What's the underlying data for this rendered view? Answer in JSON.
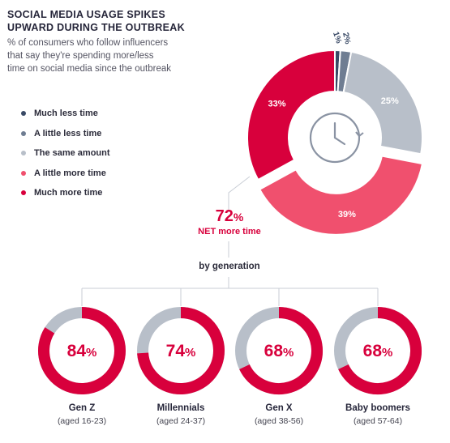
{
  "title_line1": "SOCIAL MEDIA USAGE SPIKES",
  "title_line2": "UPWARD DURING THE OUTBREAK",
  "subtitle_line1": "% of consumers who follow influencers",
  "subtitle_line2": "that say they're spending more/less",
  "subtitle_line3": "time on social media since the outbreak",
  "net": {
    "value": "72",
    "unit": "%",
    "label": "NET more time"
  },
  "by_generation_label": "by generation",
  "colors": {
    "much_less": "#3a4a66",
    "little_less": "#6f7d92",
    "same": "#b8bfc9",
    "little_more": "#f0506e",
    "much_more": "#d8003c",
    "ring_track": "#b8bfc9"
  },
  "chart_data": [
    {
      "type": "pie",
      "series": [
        {
          "name": "Much less time",
          "value": 1,
          "label": "1%"
        },
        {
          "name": "A little less time",
          "value": 2,
          "label": "2%"
        },
        {
          "name": "The same amount",
          "value": 25,
          "label": "25%"
        },
        {
          "name": "A little more time",
          "value": 39,
          "label": "39%"
        },
        {
          "name": "Much more time",
          "value": 33,
          "label": "33%"
        }
      ],
      "legend": [
        "Much less time",
        "A little less time",
        "The same amount",
        "A little more time",
        "Much more time"
      ],
      "legend_position": "left"
    },
    {
      "type": "pie",
      "categories": [
        "Gen Z",
        "Millennials",
        "Gen X",
        "Baby boomers"
      ],
      "age_ranges": [
        "(aged 16-23)",
        "(aged 24-37)",
        "(aged 38-56)",
        "(aged 57-64)"
      ],
      "values": [
        84,
        74,
        68,
        68
      ],
      "value_unit": "%"
    }
  ]
}
